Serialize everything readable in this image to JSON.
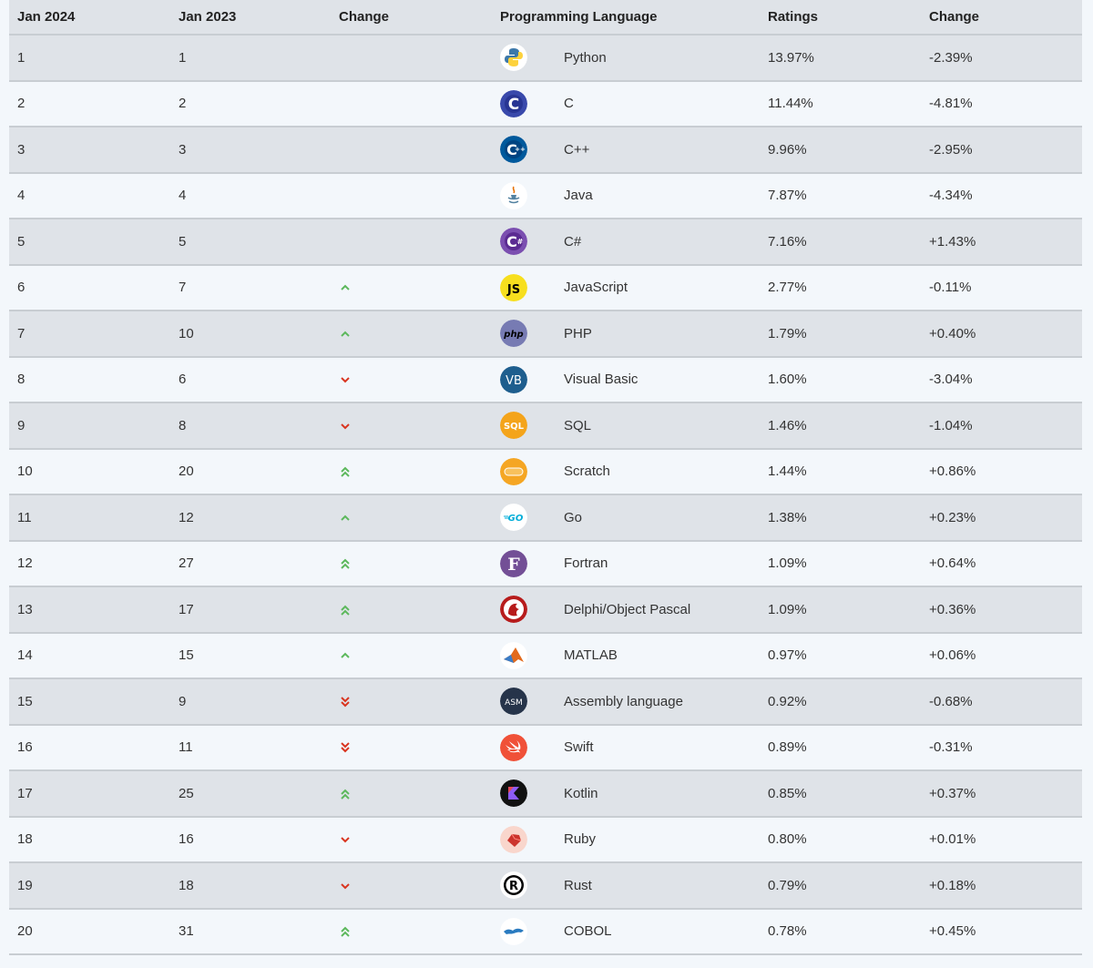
{
  "headers": [
    "Jan 2024",
    "Jan 2023",
    "Change",
    "Programming Language",
    "",
    "Ratings",
    "Change"
  ],
  "rows": [
    {
      "rank2024": "1",
      "rank2023": "1",
      "trend": "none",
      "language": "Python",
      "logo": "python-logo-icon",
      "rating": "13.97%",
      "change": "-2.39%"
    },
    {
      "rank2024": "2",
      "rank2023": "2",
      "trend": "none",
      "language": "C",
      "logo": "c-logo-icon",
      "rating": "11.44%",
      "change": "-4.81%"
    },
    {
      "rank2024": "3",
      "rank2023": "3",
      "trend": "none",
      "language": "C++",
      "logo": "cpp-logo-icon",
      "rating": "9.96%",
      "change": "-2.95%"
    },
    {
      "rank2024": "4",
      "rank2023": "4",
      "trend": "none",
      "language": "Java",
      "logo": "java-logo-icon",
      "rating": "7.87%",
      "change": "-4.34%"
    },
    {
      "rank2024": "5",
      "rank2023": "5",
      "trend": "none",
      "language": "C#",
      "logo": "csharp-logo-icon",
      "rating": "7.16%",
      "change": "+1.43%"
    },
    {
      "rank2024": "6",
      "rank2023": "7",
      "trend": "up",
      "language": "JavaScript",
      "logo": "javascript-logo-icon",
      "rating": "2.77%",
      "change": "-0.11%"
    },
    {
      "rank2024": "7",
      "rank2023": "10",
      "trend": "up",
      "language": "PHP",
      "logo": "php-logo-icon",
      "rating": "1.79%",
      "change": "+0.40%"
    },
    {
      "rank2024": "8",
      "rank2023": "6",
      "trend": "down",
      "language": "Visual Basic",
      "logo": "visual-basic-logo-icon",
      "rating": "1.60%",
      "change": "-3.04%"
    },
    {
      "rank2024": "9",
      "rank2023": "8",
      "trend": "down",
      "language": "SQL",
      "logo": "sql-logo-icon",
      "rating": "1.46%",
      "change": "-1.04%"
    },
    {
      "rank2024": "10",
      "rank2023": "20",
      "trend": "up2",
      "language": "Scratch",
      "logo": "scratch-logo-icon",
      "rating": "1.44%",
      "change": "+0.86%"
    },
    {
      "rank2024": "11",
      "rank2023": "12",
      "trend": "up",
      "language": "Go",
      "logo": "go-logo-icon",
      "rating": "1.38%",
      "change": "+0.23%"
    },
    {
      "rank2024": "12",
      "rank2023": "27",
      "trend": "up2",
      "language": "Fortran",
      "logo": "fortran-logo-icon",
      "rating": "1.09%",
      "change": "+0.64%"
    },
    {
      "rank2024": "13",
      "rank2023": "17",
      "trend": "up2",
      "language": "Delphi/Object Pascal",
      "logo": "delphi-logo-icon",
      "rating": "1.09%",
      "change": "+0.36%"
    },
    {
      "rank2024": "14",
      "rank2023": "15",
      "trend": "up",
      "language": "MATLAB",
      "logo": "matlab-logo-icon",
      "rating": "0.97%",
      "change": "+0.06%"
    },
    {
      "rank2024": "15",
      "rank2023": "9",
      "trend": "down2",
      "language": "Assembly language",
      "logo": "assembly-logo-icon",
      "rating": "0.92%",
      "change": "-0.68%"
    },
    {
      "rank2024": "16",
      "rank2023": "11",
      "trend": "down2",
      "language": "Swift",
      "logo": "swift-logo-icon",
      "rating": "0.89%",
      "change": "-0.31%"
    },
    {
      "rank2024": "17",
      "rank2023": "25",
      "trend": "up2",
      "language": "Kotlin",
      "logo": "kotlin-logo-icon",
      "rating": "0.85%",
      "change": "+0.37%"
    },
    {
      "rank2024": "18",
      "rank2023": "16",
      "trend": "down",
      "language": "Ruby",
      "logo": "ruby-logo-icon",
      "rating": "0.80%",
      "change": "+0.01%"
    },
    {
      "rank2024": "19",
      "rank2023": "18",
      "trend": "down",
      "language": "Rust",
      "logo": "rust-logo-icon",
      "rating": "0.79%",
      "change": "+0.18%"
    },
    {
      "rank2024": "20",
      "rank2023": "31",
      "trend": "up2",
      "language": "COBOL",
      "logo": "cobol-logo-icon",
      "rating": "0.78%",
      "change": "+0.45%"
    }
  ],
  "logo_text": {
    "js": "JS",
    "php": "php",
    "vb": "VB",
    "sql": "SQL",
    "go": "GO",
    "fortran": "F",
    "asm": "ASM",
    "rust": "R"
  },
  "colors": {
    "up": "#5cb85c",
    "down": "#d9341f",
    "row_odd": "#dfe3e8",
    "row_even": "#f3f7fb"
  }
}
